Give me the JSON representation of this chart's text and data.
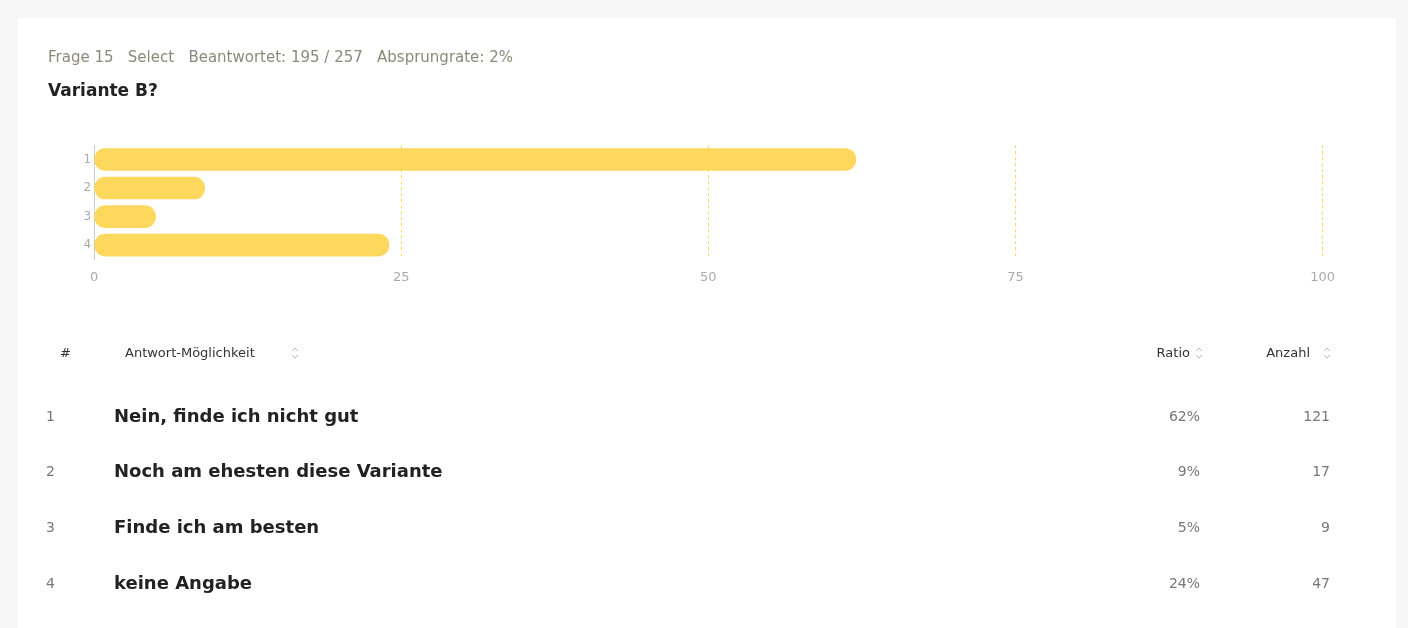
{
  "chart_data": {
    "type": "bar",
    "orientation": "horizontal",
    "title": "Variante B?",
    "subtitle": "Frage 15   Select   Beantwortet: 195 / 257   Absprungrate: 2%",
    "categories": [
      "1",
      "2",
      "3",
      "4"
    ],
    "values": [
      62,
      9,
      5,
      24
    ],
    "color": "#fdd85d",
    "xlim": [
      0,
      100
    ],
    "xticks": [
      0,
      25,
      50,
      75,
      100
    ],
    "grid": "x",
    "annotations": [
      "#",
      "Antwort-Möglichkeit",
      "Ratio",
      "Anzahl",
      "Nein, finde ich nicht gut",
      "62%",
      "121",
      "Noch am ehesten diese Variante",
      "9%",
      "17",
      "Finde ich am besten",
      "5%",
      "9",
      "keine Angabe",
      "24%",
      "47"
    ]
  }
}
